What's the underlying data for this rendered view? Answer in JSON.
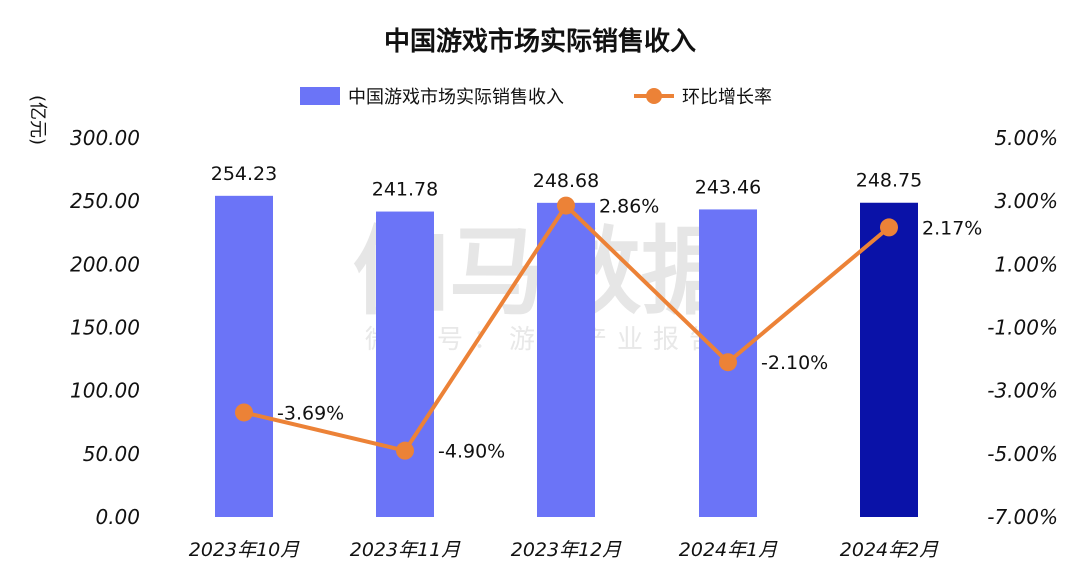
{
  "chart_data": {
    "type": "bar",
    "title": "中国游戏市场实际销售收入",
    "y_left_unit": "(亿元)",
    "categories": [
      "2023年10月",
      "2023年11月",
      "2023年12月",
      "2024年1月",
      "2024年2月"
    ],
    "series": [
      {
        "name": "中国游戏市场实际销售收入",
        "type": "bar",
        "axis": "left",
        "values": [
          254.23,
          241.78,
          248.68,
          243.46,
          248.75
        ],
        "labels": [
          "254.23",
          "241.78",
          "248.68",
          "243.46",
          "248.75"
        ],
        "color": "#6b74f7",
        "highlight_color": "#0a12a8",
        "highlight_index": 4
      },
      {
        "name": "环比增长率",
        "type": "line",
        "axis": "right",
        "values": [
          -3.69,
          -4.9,
          2.86,
          -2.1,
          2.17
        ],
        "labels": [
          "-3.69%",
          "-4.90%",
          "2.86%",
          "-2.10%",
          "2.17%"
        ],
        "color": "#ec8237"
      }
    ],
    "y_left": {
      "range": [
        0,
        300
      ],
      "ticks": [
        "0.00",
        "50.00",
        "100.00",
        "150.00",
        "200.00",
        "250.00",
        "300.00"
      ]
    },
    "y_right": {
      "range": [
        -7,
        5
      ],
      "ticks": [
        "-7.00%",
        "-5.00%",
        "-3.00%",
        "-1.00%",
        "1.00%",
        "3.00%",
        "5.00%"
      ]
    },
    "grid": false,
    "legend_position": "top-center"
  },
  "watermark": {
    "main": "伽马数据",
    "sub": "微信号：游戏产业报告"
  }
}
